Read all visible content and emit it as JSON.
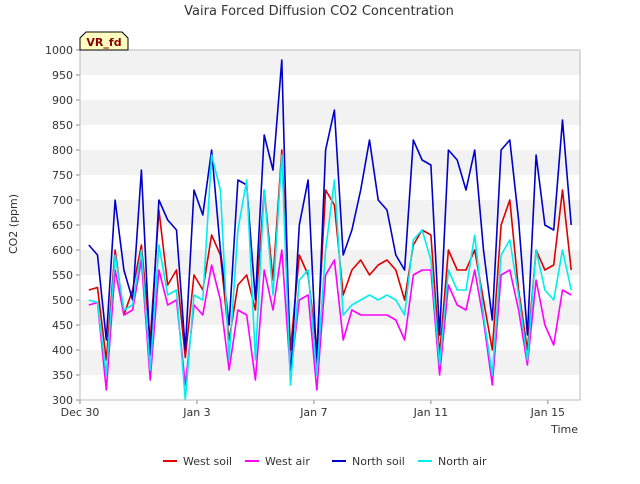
{
  "chart_data": {
    "type": "line",
    "title": "Vaira Forced Diffusion CO2 Concentration",
    "badge": "VR_fd",
    "xlabel": "Time",
    "ylabel": "CO2 (ppm)",
    "ylim": [
      300,
      1000
    ],
    "yticks": [
      300,
      350,
      400,
      450,
      500,
      550,
      600,
      650,
      700,
      750,
      800,
      850,
      900,
      950,
      1000
    ],
    "xlim": [
      0,
      17.1
    ],
    "xticks": [
      {
        "value": 0,
        "label": "Dec 30"
      },
      {
        "value": 4,
        "label": "Jan 3"
      },
      {
        "value": 8,
        "label": "Jan 7"
      },
      {
        "value": 12,
        "label": "Jan 11"
      },
      {
        "value": 16,
        "label": "Jan 15"
      }
    ],
    "grid": "horizontal bands",
    "legend_position": "bottom",
    "x": [
      0.3,
      0.6,
      0.9,
      1.2,
      1.5,
      1.8,
      2.1,
      2.4,
      2.7,
      3.0,
      3.3,
      3.6,
      3.9,
      4.2,
      4.5,
      4.8,
      5.1,
      5.4,
      5.7,
      6.0,
      6.3,
      6.6,
      6.9,
      7.2,
      7.5,
      7.8,
      8.1,
      8.4,
      8.7,
      9.0,
      9.3,
      9.6,
      9.9,
      10.2,
      10.5,
      10.8,
      11.1,
      11.4,
      11.7,
      12.0,
      12.3,
      12.6,
      12.9,
      13.2,
      13.5,
      13.8,
      14.1,
      14.4,
      14.7,
      15.0,
      15.3,
      15.6,
      15.9,
      16.2,
      16.5,
      16.8
    ],
    "series": [
      {
        "name": "West soil",
        "color": "#dd0000",
        "values": [
          520,
          525,
          380,
          600,
          470,
          520,
          610,
          420,
          680,
          530,
          560,
          385,
          550,
          520,
          630,
          590,
          420,
          530,
          550,
          480,
          720,
          540,
          800,
          400,
          590,
          550,
          400,
          720,
          690,
          510,
          560,
          580,
          550,
          570,
          580,
          560,
          500,
          610,
          640,
          630,
          390,
          600,
          560,
          560,
          600,
          500,
          400,
          650,
          700,
          520,
          400,
          600,
          560,
          570,
          720,
          560
        ]
      },
      {
        "name": "West air",
        "color": "#ff00ff",
        "values": [
          490,
          495,
          320,
          560,
          470,
          480,
          580,
          340,
          560,
          490,
          500,
          330,
          490,
          470,
          570,
          500,
          360,
          480,
          470,
          340,
          560,
          480,
          600,
          350,
          500,
          510,
          320,
          550,
          580,
          420,
          480,
          470,
          470,
          470,
          470,
          460,
          420,
          550,
          560,
          560,
          350,
          530,
          490,
          480,
          560,
          460,
          330,
          550,
          560,
          480,
          370,
          540,
          450,
          410,
          520,
          510
        ]
      },
      {
        "name": "North soil",
        "color": "#0000cc",
        "values": [
          610,
          590,
          420,
          700,
          560,
          500,
          760,
          390,
          700,
          660,
          640,
          400,
          720,
          670,
          800,
          600,
          450,
          740,
          730,
          500,
          830,
          760,
          980,
          340,
          650,
          740,
          370,
          800,
          880,
          590,
          640,
          720,
          820,
          700,
          680,
          590,
          560,
          820,
          780,
          770,
          430,
          800,
          780,
          720,
          800,
          600,
          460,
          800,
          820,
          660,
          430,
          790,
          650,
          640,
          860,
          650
        ]
      },
      {
        "name": "North air",
        "color": "#00eeee",
        "values": [
          500,
          495,
          350,
          590,
          480,
          490,
          600,
          360,
          610,
          510,
          520,
          300,
          510,
          500,
          790,
          720,
          380,
          640,
          740,
          380,
          720,
          510,
          790,
          330,
          540,
          560,
          350,
          600,
          740,
          470,
          490,
          500,
          510,
          500,
          510,
          500,
          470,
          620,
          640,
          580,
          370,
          560,
          520,
          520,
          630,
          470,
          350,
          590,
          620,
          510,
          380,
          600,
          520,
          500,
          600,
          520
        ]
      }
    ]
  }
}
